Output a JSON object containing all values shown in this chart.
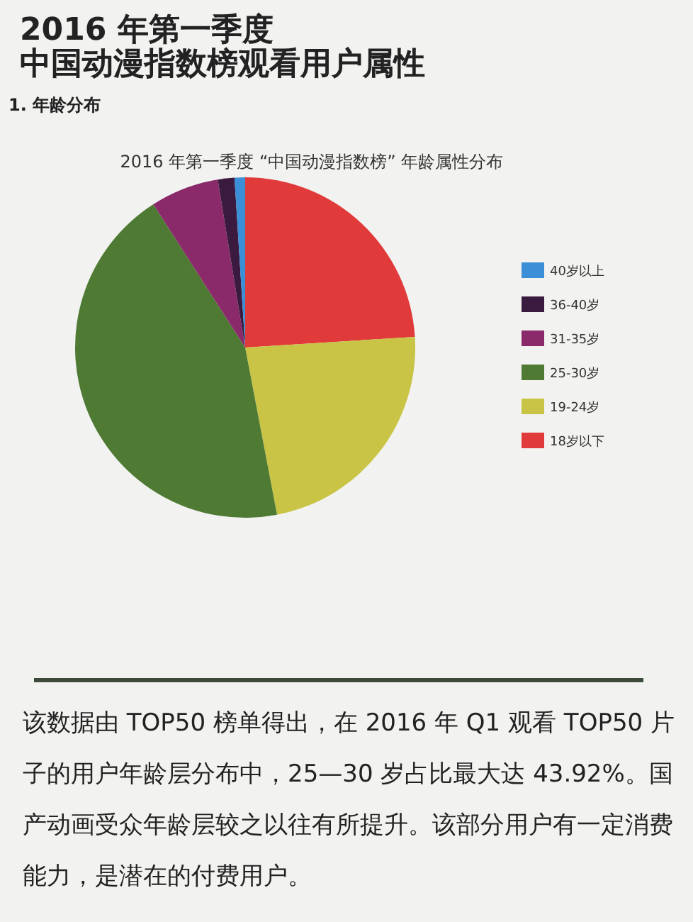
{
  "chart_data": {
    "type": "pie",
    "title": "2016 年第一季度 “中国动漫指数榜” 年龄属性分布",
    "categories": [
      "18岁以下",
      "19-24岁",
      "25-30岁",
      "31-35岁",
      "36-40岁",
      "40岁以上"
    ],
    "values": [
      24,
      23,
      43.92,
      6.5,
      1.58,
      1.0
    ],
    "colors": [
      "#e03a3a",
      "#c9c445",
      "#4e7a34",
      "#8a2a6a",
      "#3b1a3f",
      "#3a8fd6"
    ],
    "legend": "right",
    "annotations": [
      "2016 年第一季度",
      "中国动漫指数榜观看用户属性",
      "1. 年龄分布",
      "该数据由 TOP50 榜单得出，在 2016 年 Q1 观看 TOP50 片子的用户年龄层分布中，25—30 岁占比最大达 43.92%。国产动画受众年龄层较之以往有所提升。该部分用户有一定消费能力，是潜在的付费用户。"
    ]
  }
}
